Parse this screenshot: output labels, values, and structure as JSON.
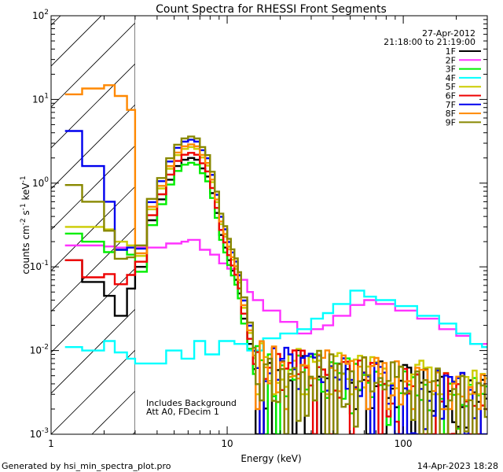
{
  "chart_data": {
    "type": "line",
    "title": "Count Spectra for RHESSI Front Segments",
    "xlabel": "Energy (keV)",
    "ylabel_parts": [
      "counts cm",
      "-2",
      " s",
      "-1",
      " keV",
      "-1"
    ],
    "x_scale": "log",
    "y_scale": "log",
    "xlim": [
      1,
      300
    ],
    "ylim": [
      0.001,
      100
    ],
    "x_tick_labels": [
      {
        "value": 1,
        "label": "1"
      },
      {
        "value": 10,
        "label": "10"
      },
      {
        "value": 100,
        "label": "100"
      }
    ],
    "y_tick_labels": [
      {
        "value": 100,
        "base": "10",
        "exp": "2"
      },
      {
        "value": 10,
        "base": "10",
        "exp": "1"
      },
      {
        "value": 1,
        "base": "10",
        "exp": "0"
      },
      {
        "value": 0.1,
        "base": "10",
        "exp": "-1"
      },
      {
        "value": 0.01,
        "base": "10",
        "exp": "-2"
      },
      {
        "value": 0.001,
        "base": "10",
        "exp": "-3"
      }
    ],
    "excluded_region_max_energy": 3,
    "date": "27-Apr-2012",
    "time_range": "21:18:00 to 21:19:00",
    "annotation_lines": [
      "Includes Background",
      "Att A0, FDecim 1"
    ],
    "footer_left": "Generated by hsi_min_spectra_plot.pro",
    "footer_right": "14-Apr-2023 18:28",
    "series": [
      {
        "name": "1F",
        "color": "#000000",
        "low_bins": [
          [
            1.2,
            0.12
          ],
          [
            1.5,
            0.066
          ],
          [
            2.0,
            0.045
          ],
          [
            2.3,
            0.026
          ],
          [
            2.7,
            0.055
          ]
        ],
        "peak": 2.0,
        "high_scale": 1.0,
        "floor": 0.001
      },
      {
        "name": "2F",
        "color": "#ff33ff",
        "low_bins": [
          [
            1.2,
            0.18
          ],
          [
            1.5,
            0.18
          ],
          [
            2.0,
            0.175
          ],
          [
            2.3,
            0.17
          ],
          [
            2.7,
            0.17
          ]
        ],
        "peak": 0.21,
        "high_scale": 0.0,
        "floor": 0.03,
        "custom": [
          [
            3.0,
            0.17
          ],
          [
            3.5,
            0.17
          ],
          [
            4.5,
            0.19
          ],
          [
            5.5,
            0.2
          ],
          [
            6.0,
            0.21
          ],
          [
            7.0,
            0.16
          ],
          [
            8.0,
            0.14
          ],
          [
            9.0,
            0.11
          ],
          [
            10.0,
            0.095
          ],
          [
            11.0,
            0.08
          ],
          [
            12.0,
            0.07
          ],
          [
            13.0,
            0.05
          ],
          [
            14.0,
            0.04
          ],
          [
            16.0,
            0.03
          ],
          [
            20.0,
            0.022
          ],
          [
            25.0,
            0.016
          ],
          [
            30.0,
            0.018
          ],
          [
            35.0,
            0.02
          ],
          [
            40.0,
            0.026
          ],
          [
            50.0,
            0.035
          ],
          [
            60.0,
            0.04
          ],
          [
            70.0,
            0.036
          ],
          [
            90.0,
            0.03
          ],
          [
            120.0,
            0.024
          ],
          [
            160.0,
            0.018
          ],
          [
            200.0,
            0.015
          ],
          [
            240.0,
            0.012
          ],
          [
            280.0,
            0.012
          ]
        ]
      },
      {
        "name": "3F",
        "color": "#00ee00",
        "low_bins": [
          [
            1.2,
            0.25
          ],
          [
            1.5,
            0.2
          ],
          [
            2.0,
            0.15
          ],
          [
            2.3,
            0.16
          ],
          [
            2.7,
            0.14
          ]
        ],
        "peak": 1.75,
        "high_scale": 0.95,
        "floor": 0.001
      },
      {
        "name": "4F",
        "color": "#00ffff",
        "low_bins": [
          [
            1.2,
            0.011
          ],
          [
            1.5,
            0.01
          ],
          [
            2.0,
            0.013
          ],
          [
            2.3,
            0.0095
          ],
          [
            2.7,
            0.008
          ]
        ],
        "peak": 0.012,
        "high_scale": 0.0,
        "floor": 0.01,
        "custom": [
          [
            3.0,
            0.007
          ],
          [
            3.5,
            0.007
          ],
          [
            4.5,
            0.01
          ],
          [
            5.5,
            0.008
          ],
          [
            6.5,
            0.013
          ],
          [
            7.5,
            0.009
          ],
          [
            9.0,
            0.013
          ],
          [
            11.0,
            0.012
          ],
          [
            13.0,
            0.01
          ],
          [
            16.0,
            0.014
          ],
          [
            20.0,
            0.016
          ],
          [
            25.0,
            0.018
          ],
          [
            30.0,
            0.024
          ],
          [
            35.0,
            0.028
          ],
          [
            40.0,
            0.036
          ],
          [
            50.0,
            0.052
          ],
          [
            60.0,
            0.044
          ],
          [
            70.0,
            0.04
          ],
          [
            90.0,
            0.034
          ],
          [
            120.0,
            0.026
          ],
          [
            160.0,
            0.021
          ],
          [
            200.0,
            0.016
          ],
          [
            240.0,
            0.012
          ],
          [
            280.0,
            0.011
          ]
        ]
      },
      {
        "name": "5F",
        "color": "#cccc00",
        "low_bins": [
          [
            1.2,
            0.3
          ],
          [
            1.5,
            0.3
          ],
          [
            2.0,
            0.28
          ],
          [
            2.3,
            0.2
          ],
          [
            2.7,
            0.18
          ]
        ],
        "peak": 2.7,
        "high_scale": 1.2,
        "floor": 0.003
      },
      {
        "name": "6F",
        "color": "#ee0000",
        "low_bins": [
          [
            1.2,
            0.12
          ],
          [
            1.5,
            0.075
          ],
          [
            2.0,
            0.082
          ],
          [
            2.3,
            0.062
          ],
          [
            2.7,
            0.08
          ]
        ],
        "peak": 2.3,
        "high_scale": 1.0,
        "floor": 0.001
      },
      {
        "name": "7F",
        "color": "#0000ee",
        "low_bins": [
          [
            1.2,
            4.2
          ],
          [
            1.5,
            1.6
          ],
          [
            2.0,
            0.6
          ],
          [
            2.3,
            0.16
          ],
          [
            2.7,
            0.17
          ]
        ],
        "peak": 3.3,
        "high_scale": 1.0,
        "floor": 0.001
      },
      {
        "name": "8F",
        "color": "#ff8800",
        "low_bins": [
          [
            1.2,
            11.5
          ],
          [
            1.5,
            13.5
          ],
          [
            2.0,
            14.8
          ],
          [
            2.3,
            11.0
          ],
          [
            2.7,
            7.5
          ]
        ],
        "peak": 2.9,
        "high_scale": 1.1,
        "floor": 0.002
      },
      {
        "name": "9F",
        "color": "#888800",
        "low_bins": [
          [
            1.2,
            0.95
          ],
          [
            1.5,
            0.6
          ],
          [
            2.0,
            0.27
          ],
          [
            2.3,
            0.125
          ],
          [
            2.7,
            0.13
          ]
        ],
        "peak": 3.6,
        "high_scale": 1.05,
        "floor": 0.001
      }
    ]
  }
}
